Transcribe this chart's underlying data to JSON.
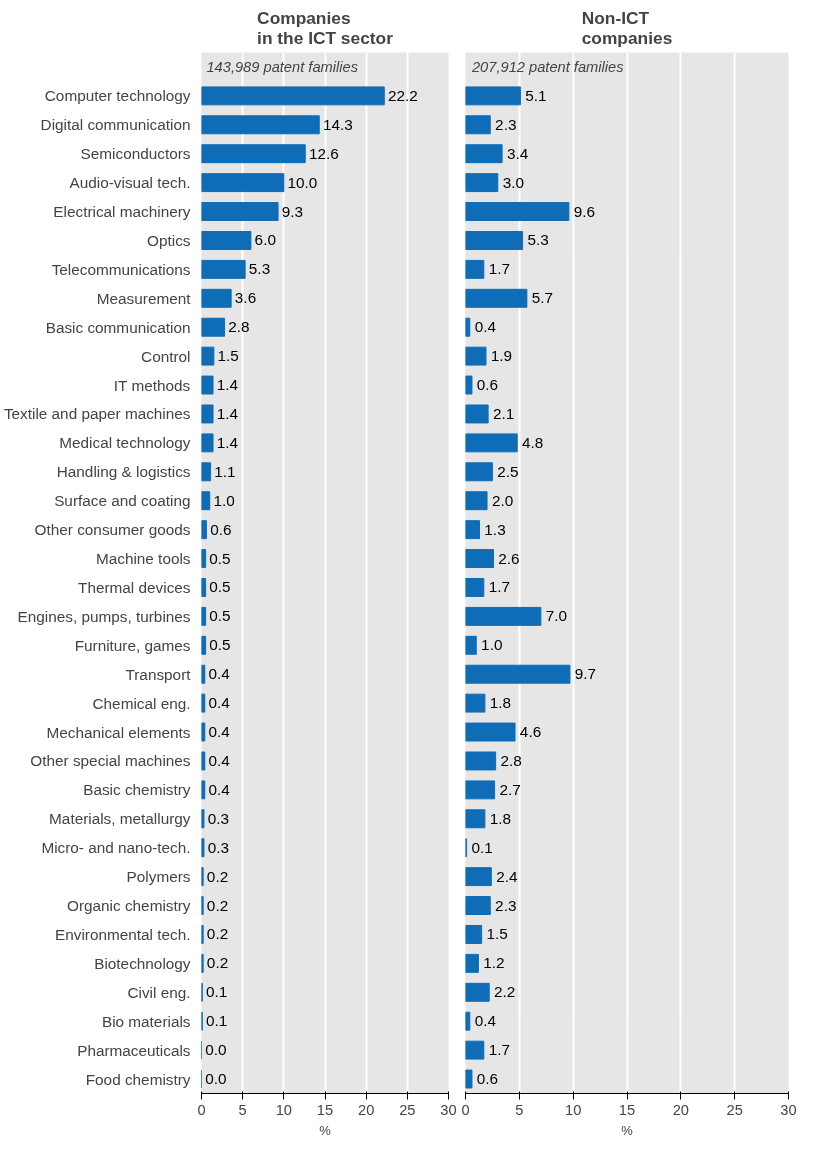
{
  "chart_data": [
    {
      "type": "bar",
      "orientation": "horizontal",
      "title": "Companies\nin the ICT sector",
      "annotations": [
        "143,989 patent families"
      ],
      "categories": [
        "Computer technology",
        "Digital communication",
        "Semiconductors",
        "Audio-visual tech.",
        "Electrical machinery",
        "Optics",
        "Telecommunications",
        "Measurement",
        "Basic communication",
        "Control",
        "IT methods",
        "Textile and paper machines",
        "Medical technology",
        "Handling & logistics",
        "Surface and coating",
        "Other consumer goods",
        "Machine tools",
        "Thermal devices",
        "Engines, pumps, turbines",
        "Furniture, games",
        "Transport",
        "Chemical eng.",
        "Mechanical elements",
        "Other special machines",
        "Basic chemistry",
        "Materials, metallurgy",
        "Micro- and nano-tech.",
        "Polymers",
        "Organic chemistry",
        "Environmental tech.",
        "Biotechnology",
        "Civil eng.",
        "Bio materials",
        "Pharmaceuticals",
        "Food chemistry"
      ],
      "values": [
        22.2,
        14.3,
        12.6,
        10.0,
        9.3,
        6.0,
        5.3,
        3.6,
        2.8,
        1.5,
        1.4,
        1.4,
        1.4,
        1.1,
        1.0,
        0.6,
        0.5,
        0.5,
        0.5,
        0.5,
        0.4,
        0.4,
        0.4,
        0.4,
        0.4,
        0.3,
        0.3,
        0.2,
        0.2,
        0.2,
        0.2,
        0.1,
        0.1,
        0.0,
        0.0
      ],
      "value_labels": [
        "22.2",
        "14.3",
        "12.6",
        "10.0",
        "9.3",
        "6.0",
        "5.3",
        "3.6",
        "2.8",
        "1.5",
        "1.4",
        "1.4",
        "1.4",
        "1.1",
        "1.0",
        "0.6",
        "0.5",
        "0.5",
        "0.5",
        "0.5",
        "0.4",
        "0.4",
        "0.4",
        "0.4",
        "0.4",
        "0.3",
        "0.3",
        "0.2",
        "0.2",
        "0.2",
        "0.2",
        "0.1",
        "0.1",
        "0.0",
        "0.0"
      ],
      "color": "#0f6cb6",
      "xlim": [
        0,
        30
      ],
      "xticks": [
        0,
        5,
        10,
        15,
        20,
        25,
        30
      ],
      "xlabel": "%",
      "grid": "x"
    },
    {
      "type": "bar",
      "orientation": "horizontal",
      "title": "Non-ICT\ncompanies",
      "annotations": [
        "207,912 patent families"
      ],
      "categories": [
        null,
        null,
        null,
        null,
        null,
        null,
        null,
        null,
        null,
        null,
        null,
        null,
        null,
        null,
        null,
        null,
        null,
        null,
        null,
        null,
        null,
        null,
        null,
        null,
        null,
        null,
        null,
        null,
        null,
        null,
        null,
        null,
        null,
        null,
        null
      ],
      "values": [
        5.1,
        2.3,
        3.4,
        3.0,
        9.6,
        5.3,
        1.7,
        5.7,
        0.4,
        1.9,
        0.6,
        2.1,
        4.8,
        2.5,
        2.0,
        1.3,
        2.6,
        1.7,
        7.0,
        1.0,
        9.7,
        1.8,
        4.6,
        2.8,
        2.7,
        1.8,
        0.1,
        2.4,
        2.3,
        1.5,
        1.2,
        2.2,
        0.4,
        1.7,
        0.6
      ],
      "value_labels": [
        "5.1",
        "2.3",
        "3.4",
        "3.0",
        "9.6",
        "5.3",
        "1.7",
        "5.7",
        "0.4",
        "1.9",
        "0.6",
        "2.1",
        "4.8",
        "2.5",
        "2.0",
        "1.3",
        "2.6",
        "1.7",
        "7.0",
        "1.0",
        "9.7",
        "1.8",
        "4.6",
        "2.8",
        "2.7",
        "1.8",
        "0.1",
        "2.4",
        "2.3",
        "1.5",
        "1.2",
        "2.2",
        "0.4",
        "1.7",
        "0.6"
      ],
      "color": "#0f6cb6",
      "xlim": [
        0,
        30
      ],
      "xticks": [
        0,
        5,
        10,
        15,
        20,
        25,
        30
      ],
      "xlabel": "%",
      "grid": "x",
      "tick_labels": "x"
    }
  ]
}
